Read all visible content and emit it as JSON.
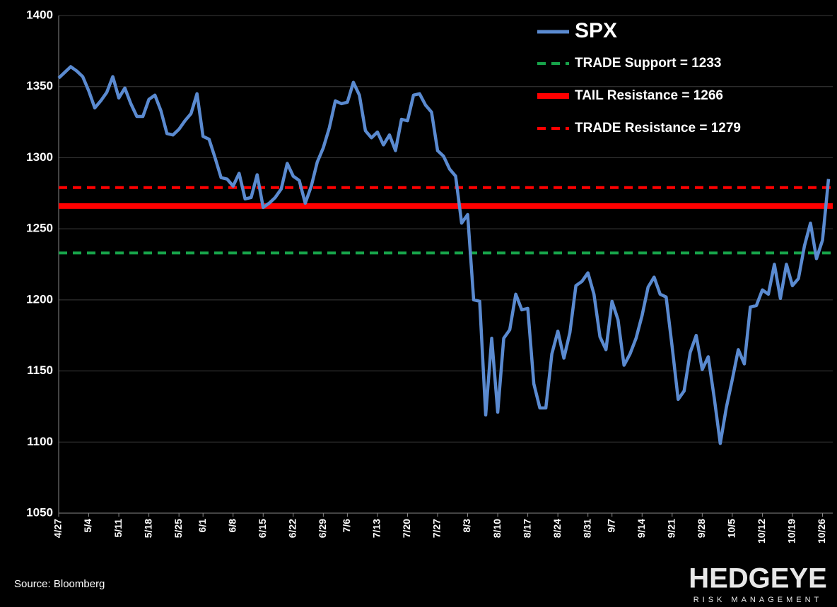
{
  "chart_data": {
    "type": "line",
    "categories": [
      "4/27",
      null,
      null,
      null,
      null,
      "5/4",
      null,
      null,
      null,
      null,
      "5/11",
      null,
      null,
      null,
      null,
      "5/18",
      null,
      null,
      null,
      null,
      "5/25",
      null,
      null,
      null,
      "6/1",
      null,
      null,
      null,
      null,
      "6/8",
      null,
      null,
      null,
      null,
      "6/15",
      null,
      null,
      null,
      null,
      "6/22",
      null,
      null,
      null,
      null,
      "6/29",
      null,
      null,
      null,
      "7/6",
      null,
      null,
      null,
      null,
      "7/13",
      null,
      null,
      null,
      null,
      "7/20",
      null,
      null,
      null,
      null,
      "7/27",
      null,
      null,
      null,
      null,
      "8/3",
      null,
      null,
      null,
      null,
      "8/10",
      null,
      null,
      null,
      null,
      "8/17",
      null,
      null,
      null,
      null,
      "8/24",
      null,
      null,
      null,
      null,
      "8/31",
      null,
      null,
      null,
      "9/7",
      null,
      null,
      null,
      null,
      "9/14",
      null,
      null,
      null,
      null,
      "9/21",
      null,
      null,
      null,
      null,
      "9/28",
      null,
      null,
      null,
      null,
      "10/5",
      null,
      null,
      null,
      null,
      "10/12",
      null,
      null,
      null,
      null,
      "10/19",
      null,
      null,
      null,
      null,
      "10/26",
      null
    ],
    "series": [
      {
        "name": "SPX",
        "color": "#5a8ad0",
        "values": [
          1356,
          1360,
          1364,
          1361,
          1357,
          1347,
          1335,
          1340,
          1346,
          1357,
          1342,
          1349,
          1338,
          1329,
          1329,
          1341,
          1344,
          1333,
          1317,
          1316,
          1320,
          1326,
          1331,
          1345,
          1315,
          1313,
          1300,
          1286,
          1285,
          1280,
          1289,
          1271,
          1272,
          1288,
          1265,
          1268,
          1272,
          1278,
          1296,
          1287,
          1284,
          1268,
          1280,
          1297,
          1307,
          1321,
          1340,
          1338,
          1339,
          1353,
          1344,
          1319,
          1314,
          1318,
          1309,
          1316,
          1305,
          1327,
          1326,
          1344,
          1345,
          1337,
          1332,
          1305,
          1301,
          1292,
          1287,
          1254,
          1260,
          1200,
          1199,
          1119,
          1173,
          1121,
          1173,
          1179,
          1204,
          1193,
          1194,
          1141,
          1124,
          1124,
          1162,
          1178,
          1159,
          1177,
          1210,
          1213,
          1219,
          1204,
          1174,
          1165,
          1199,
          1186,
          1154,
          1162,
          1173,
          1189,
          1209,
          1216,
          1204,
          1202,
          1167,
          1130,
          1136,
          1163,
          1175,
          1151,
          1160,
          1131,
          1099,
          1124,
          1144,
          1165,
          1155,
          1195,
          1196,
          1207,
          1204,
          1225,
          1201,
          1225,
          1210,
          1215,
          1238,
          1254,
          1229,
          1242,
          1285
        ]
      }
    ],
    "reference_lines": [
      {
        "name": "TRADE Support = 1233",
        "value": 1233,
        "color": "#17a34a",
        "dashed": true
      },
      {
        "name": "TAIL Resistance = 1266",
        "value": 1266,
        "color": "#ff0000",
        "dashed": false
      },
      {
        "name": "TRADE Resistance = 1279",
        "value": 1279,
        "color": "#ff0000",
        "dashed": true
      }
    ],
    "ylim": [
      1050,
      1400
    ],
    "yticks": [
      1050,
      1100,
      1150,
      1200,
      1250,
      1300,
      1350,
      1400
    ],
    "grid": true,
    "source": "Source: Bloomberg",
    "logo": {
      "name": "HEDGEYE",
      "tagline": "RISK MANAGEMENT"
    }
  }
}
